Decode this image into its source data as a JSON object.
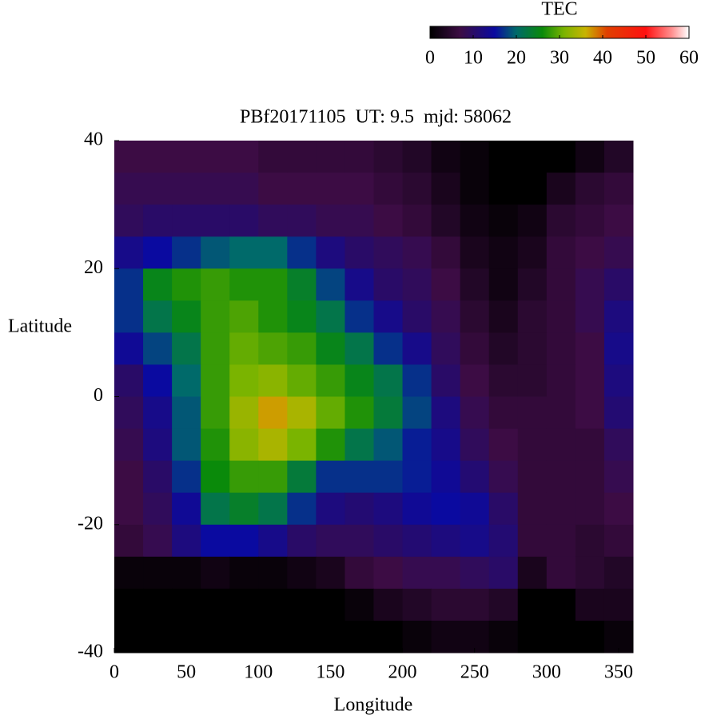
{
  "chart_data": {
    "type": "heatmap",
    "title": "PBf20171105  UT: 9.5  mjd: 58062",
    "xlabel": "Longitude",
    "ylabel": "Latitude",
    "colorbar_label": "TEC",
    "x": [
      10,
      30,
      50,
      70,
      90,
      110,
      130,
      150,
      170,
      190,
      210,
      230,
      250,
      270,
      290,
      310,
      330,
      350
    ],
    "y": [
      37.5,
      32.5,
      27.5,
      22.5,
      17.5,
      12.5,
      7.5,
      2.5,
      -2.5,
      -7.5,
      -12.5,
      -17.5,
      -22.5,
      -27.5,
      -32.5,
      -37.5
    ],
    "z": [
      [
        7,
        7,
        7,
        7,
        7,
        6,
        6,
        6,
        6,
        5,
        4,
        2,
        1,
        0,
        0,
        0,
        2,
        4
      ],
      [
        8,
        8,
        8,
        8,
        8,
        7,
        7,
        7,
        7,
        6,
        5,
        3,
        1,
        0,
        0,
        3,
        5,
        6
      ],
      [
        9,
        10,
        10,
        10,
        10,
        9,
        9,
        8,
        8,
        7,
        6,
        4,
        2,
        1,
        2,
        5,
        6,
        7
      ],
      [
        13,
        15,
        17,
        19,
        20,
        20,
        17,
        12,
        10,
        9,
        8,
        6,
        3,
        2,
        3,
        6,
        7,
        8
      ],
      [
        17,
        25,
        27,
        28,
        27,
        27,
        24,
        18,
        13,
        10,
        9,
        7,
        4,
        2,
        4,
        6,
        8,
        10
      ],
      [
        17,
        22,
        25,
        28,
        29,
        27,
        25,
        22,
        17,
        13,
        10,
        8,
        5,
        3,
        5,
        6,
        8,
        12
      ],
      [
        14,
        18,
        22,
        28,
        30,
        29,
        28,
        25,
        22,
        17,
        13,
        9,
        6,
        4,
        5,
        6,
        7,
        13
      ],
      [
        10,
        15,
        20,
        28,
        31,
        32,
        30,
        28,
        25,
        22,
        17,
        10,
        7,
        5,
        5,
        6,
        7,
        12
      ],
      [
        9,
        13,
        19,
        28,
        33,
        37,
        34,
        30,
        27,
        23,
        18,
        12,
        8,
        6,
        6,
        6,
        7,
        11
      ],
      [
        8,
        12,
        19,
        27,
        32,
        34,
        31,
        27,
        22,
        19,
        16,
        13,
        9,
        7,
        6,
        6,
        6,
        9
      ],
      [
        7,
        10,
        17,
        26,
        28,
        28,
        23,
        17,
        17,
        17,
        16,
        14,
        11,
        8,
        6,
        6,
        6,
        8
      ],
      [
        7,
        9,
        14,
        22,
        24,
        22,
        17,
        12,
        11,
        12,
        14,
        15,
        14,
        10,
        6,
        6,
        6,
        7
      ],
      [
        6,
        8,
        12,
        15,
        15,
        13,
        10,
        9,
        9,
        10,
        11,
        12,
        13,
        11,
        6,
        6,
        5,
        6
      ],
      [
        1,
        1,
        1,
        2,
        1,
        1,
        2,
        3,
        6,
        7,
        8,
        8,
        9,
        10,
        3,
        6,
        5,
        4
      ],
      [
        0,
        0,
        0,
        0,
        0,
        0,
        0,
        0,
        1,
        3,
        4,
        5,
        5,
        4,
        0,
        0,
        3,
        3
      ],
      [
        0,
        0,
        0,
        0,
        0,
        0,
        0,
        0,
        0,
        0,
        1,
        2,
        2,
        1,
        0,
        0,
        0,
        1
      ]
    ],
    "xlim": [
      0,
      360
    ],
    "xticks": [
      0,
      50,
      100,
      150,
      200,
      250,
      300,
      350
    ],
    "ylim": [
      -40,
      40
    ],
    "yticks": [
      -40,
      -20,
      0,
      20,
      40
    ],
    "clim": [
      0,
      60
    ],
    "cticks": [
      0,
      10,
      20,
      30,
      40,
      50,
      60
    ],
    "colormap": [
      {
        "value": 0,
        "color": "#000000"
      },
      {
        "value": 7,
        "color": "#3c0c44"
      },
      {
        "value": 15,
        "color": "#0a0aa0"
      },
      {
        "value": 20,
        "color": "#006a6a"
      },
      {
        "value": 26,
        "color": "#0a8a0a"
      },
      {
        "value": 31,
        "color": "#7ab400"
      },
      {
        "value": 36,
        "color": "#c8b400"
      },
      {
        "value": 41,
        "color": "#e04000"
      },
      {
        "value": 50,
        "color": "#ff1010"
      },
      {
        "value": 56,
        "color": "#ff9090"
      },
      {
        "value": 60,
        "color": "#ffffff"
      }
    ]
  }
}
